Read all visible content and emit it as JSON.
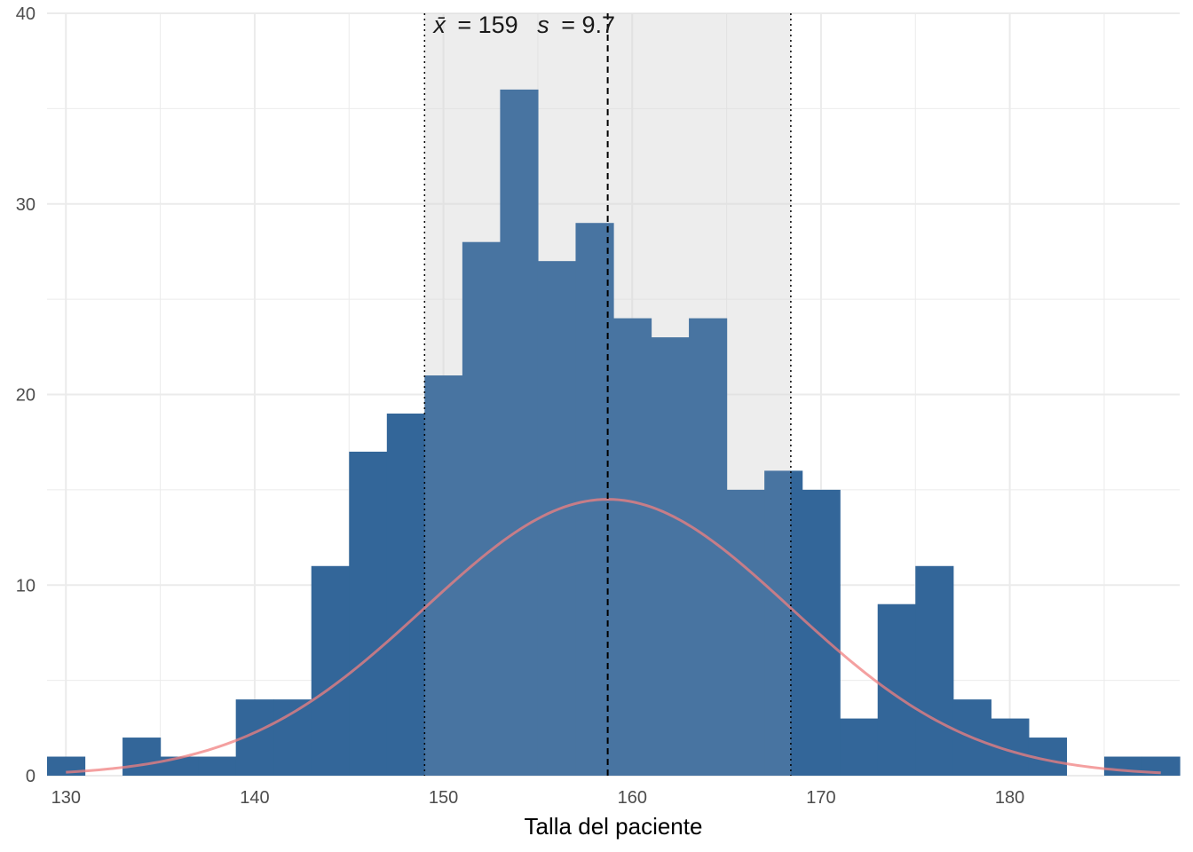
{
  "chart_data": {
    "type": "bar",
    "xlabel": "Talla del paciente",
    "ylabel": "",
    "xlim": [
      129,
      189
    ],
    "ylim": [
      0,
      40
    ],
    "x_ticks": [
      130,
      140,
      150,
      160,
      170,
      180
    ],
    "y_ticks": [
      0,
      10,
      20,
      30,
      40
    ],
    "grid": true,
    "bin_width": 2,
    "bins": [
      {
        "x0": 129,
        "x1": 131,
        "count": 1
      },
      {
        "x0": 131,
        "x1": 133,
        "count": 0
      },
      {
        "x0": 133,
        "x1": 135,
        "count": 2
      },
      {
        "x0": 135,
        "x1": 137,
        "count": 1
      },
      {
        "x0": 137,
        "x1": 139,
        "count": 1
      },
      {
        "x0": 139,
        "x1": 141,
        "count": 4
      },
      {
        "x0": 141,
        "x1": 143,
        "count": 4
      },
      {
        "x0": 143,
        "x1": 145,
        "count": 11
      },
      {
        "x0": 145,
        "x1": 147,
        "count": 17
      },
      {
        "x0": 147,
        "x1": 149,
        "count": 19
      },
      {
        "x0": 149,
        "x1": 151,
        "count": 21
      },
      {
        "x0": 151,
        "x1": 153,
        "count": 28
      },
      {
        "x0": 153,
        "x1": 155,
        "count": 36
      },
      {
        "x0": 155,
        "x1": 157,
        "count": 27
      },
      {
        "x0": 157,
        "x1": 159,
        "count": 29
      },
      {
        "x0": 159,
        "x1": 161,
        "count": 24
      },
      {
        "x0": 161,
        "x1": 163,
        "count": 23
      },
      {
        "x0": 163,
        "x1": 165,
        "count": 24
      },
      {
        "x0": 165,
        "x1": 167,
        "count": 15
      },
      {
        "x0": 167,
        "x1": 169,
        "count": 16
      },
      {
        "x0": 169,
        "x1": 171,
        "count": 15
      },
      {
        "x0": 171,
        "x1": 173,
        "count": 3
      },
      {
        "x0": 173,
        "x1": 175,
        "count": 9
      },
      {
        "x0": 175,
        "x1": 177,
        "count": 11
      },
      {
        "x0": 177,
        "x1": 179,
        "count": 4
      },
      {
        "x0": 179,
        "x1": 181,
        "count": 3
      },
      {
        "x0": 181,
        "x1": 183,
        "count": 2
      },
      {
        "x0": 183,
        "x1": 185,
        "count": 0
      },
      {
        "x0": 185,
        "x1": 187,
        "count": 1
      },
      {
        "x0": 187,
        "x1": 189,
        "count": 1
      }
    ],
    "mean": 158.7,
    "sd": 9.7,
    "band": [
      149.0,
      168.4
    ],
    "normal_curve": {
      "x_range": [
        130,
        188
      ],
      "peak": 14.5
    },
    "annotation": {
      "mean_symbol": "x̄",
      "mean_text": "= 159",
      "sd_symbol": "s",
      "sd_text": "= 9.7"
    },
    "colors": {
      "bar": "#336699",
      "band_fill": "#d9d9d9",
      "curve": "#f08080",
      "grid": "#ebebeb",
      "mean_line": "#000000",
      "sd_line": "#000000"
    }
  }
}
